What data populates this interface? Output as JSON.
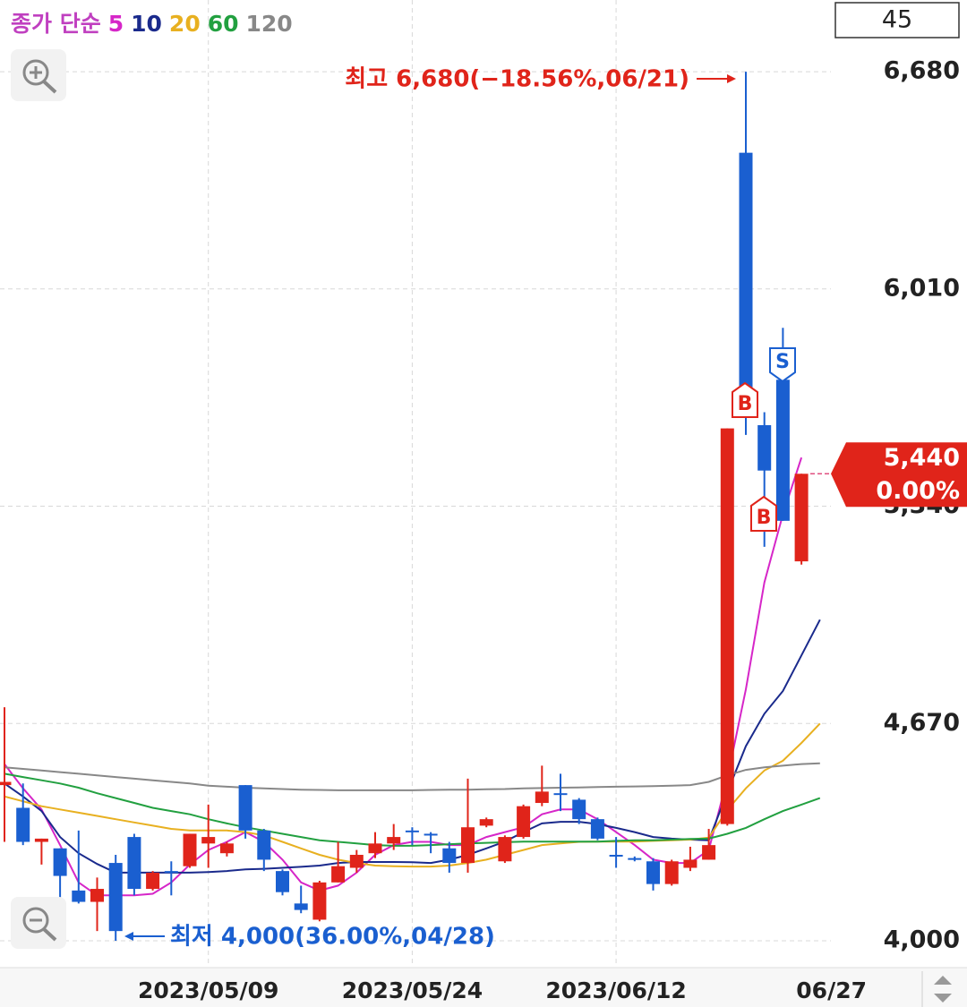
{
  "chart_data": {
    "type": "candlestick",
    "ma_label": "종가 단순",
    "period_box": "45",
    "categories": [
      null,
      null,
      null,
      null,
      null,
      null,
      null,
      null,
      null,
      null,
      null,
      "2023/05/09",
      null,
      null,
      null,
      null,
      null,
      null,
      null,
      null,
      null,
      null,
      "2023/05/24",
      null,
      null,
      null,
      null,
      null,
      null,
      null,
      null,
      null,
      null,
      "2023/06/12",
      null,
      null,
      null,
      null,
      null,
      null,
      null,
      null,
      null,
      null,
      "06/27"
    ],
    "open": [
      4480,
      4410,
      4305,
      4285,
      4155,
      4120,
      4240,
      4320,
      4160,
      4215,
      4230,
      4300,
      4270,
      4480,
      4340,
      4215,
      4115,
      4065,
      4180,
      4225,
      4270,
      4300,
      4340,
      4330,
      4285,
      4240,
      4355,
      4245,
      4320,
      4425,
      4455,
      4435,
      4375,
      4265,
      4255,
      4245,
      4175,
      4225,
      4250,
      4360,
      6430,
      5590,
      5730,
      5170,
      null
    ],
    "high": [
      4720,
      4485,
      4315,
      4285,
      4340,
      4195,
      4265,
      4330,
      4215,
      4245,
      4330,
      4420,
      4305,
      4480,
      4345,
      4220,
      4170,
      4185,
      4305,
      4280,
      4335,
      4360,
      4350,
      4335,
      4305,
      4500,
      4380,
      4325,
      4420,
      4540,
      4515,
      4440,
      4380,
      4320,
      4260,
      4255,
      4250,
      4290,
      4345,
      5580,
      6680,
      5630,
      5890,
      5440,
      null
    ],
    "low": [
      4305,
      4295,
      4235,
      4105,
      4115,
      4030,
      4000,
      4140,
      4155,
      4140,
      4225,
      4225,
      4260,
      4315,
      4215,
      4140,
      4085,
      4060,
      4180,
      4210,
      4255,
      4280,
      4295,
      4270,
      4210,
      4210,
      4350,
      4240,
      4315,
      4415,
      4400,
      4360,
      4310,
      4225,
      4245,
      4155,
      4170,
      4215,
      4250,
      4355,
      5560,
      5215,
      5295,
      5160,
      null
    ],
    "close": [
      4490,
      4305,
      4315,
      4200,
      4120,
      4160,
      4030,
      4160,
      4210,
      4210,
      4330,
      4320,
      4300,
      4340,
      4250,
      4150,
      4095,
      4180,
      4230,
      4265,
      4300,
      4320,
      4335,
      4325,
      4240,
      4350,
      4375,
      4320,
      4415,
      4460,
      4450,
      4375,
      4315,
      4260,
      4250,
      4175,
      4245,
      4250,
      4295,
      5580,
      5630,
      5450,
      5295,
      5440,
      null
    ],
    "up_color": "#e0241a",
    "down_color": "#1a5fd0",
    "series": [
      {
        "name": "5",
        "color": "#d626c8",
        "values": [
          4545,
          4470,
          4405,
          4295,
          4180,
          4140,
          4140,
          4140,
          4145,
          4180,
          4235,
          4280,
          4305,
          4335,
          4305,
          4250,
          4180,
          4155,
          4170,
          4210,
          4265,
          4295,
          4305,
          4305,
          4295,
          4295,
          4320,
          4335,
          4350,
          4390,
          4405,
          4405,
          4375,
          4335,
          4295,
          4250,
          4240,
          4240,
          4280,
          4500,
          4775,
          5105,
          5315,
          5490,
          null
        ]
      },
      {
        "name": "10",
        "color": "#1a2a8c",
        "values": [
          4485,
          4445,
          4400,
          4320,
          4270,
          4237,
          4210,
          4210,
          4210,
          4210,
          4210,
          4212,
          4215,
          4220,
          4222,
          4225,
          4228,
          4232,
          4240,
          4243,
          4243,
          4243,
          4242,
          4240,
          4250,
          4265,
          4285,
          4306,
          4335,
          4362,
          4367,
          4367,
          4360,
          4348,
          4335,
          4320,
          4315,
          4312,
          4310,
          4458,
          4600,
          4700,
          4770,
          4880,
          4990
        ]
      },
      {
        "name": "20",
        "color": "#e8b020",
        "values": [
          4445,
          4430,
          4415,
          4405,
          4395,
          4385,
          4375,
          4365,
          4355,
          4345,
          4340,
          4340,
          4340,
          4335,
          4325,
          4305,
          4285,
          4265,
          4250,
          4240,
          4232,
          4230,
          4229,
          4229,
          4232,
          4240,
          4250,
          4265,
          4280,
          4295,
          4300,
          4305,
          4306,
          4306,
          4306,
          4308,
          4310,
          4312,
          4318,
          4403,
          4470,
          4525,
          4555,
          4610,
          4670
        ]
      },
      {
        "name": "60",
        "color": "#22a040",
        "values": [
          4515,
          4505,
          4495,
          4485,
          4472,
          4455,
          4440,
          4425,
          4410,
          4400,
          4390,
          4375,
          4362,
          4350,
          4340,
          4330,
          4320,
          4310,
          4305,
          4300,
          4295,
          4293,
          4293,
          4295,
          4298,
          4300,
          4302,
          4304,
          4306,
          4306,
          4306,
          4306,
          4306,
          4308,
          4310,
          4310,
          4312,
          4314,
          4315,
          4330,
          4348,
          4375,
          4400,
          4420,
          4440
        ]
      },
      {
        "name": "120",
        "color": "#888888",
        "values": [
          4535,
          4530,
          4525,
          4520,
          4515,
          4510,
          4505,
          4500,
          4495,
          4490,
          4485,
          4478,
          4475,
          4472,
          4470,
          4468,
          4466,
          4465,
          4464,
          4464,
          4464,
          4464,
          4464,
          4465,
          4466,
          4466,
          4467,
          4468,
          4470,
          4471,
          4472,
          4473,
          4474,
          4475,
          4476,
          4477,
          4478,
          4480,
          4490,
          4510,
          4527,
          4535,
          4540,
          4545,
          4547
        ]
      }
    ],
    "ylim": [
      3920,
      6901
    ],
    "yticks": [
      {
        "value": 4000,
        "label": "4,000"
      },
      {
        "value": 4670,
        "label": "4,670"
      },
      {
        "value": 5340,
        "label": "5,340"
      },
      {
        "value": 6010,
        "label": "6,010"
      },
      {
        "value": 6680,
        "label": "6,680"
      }
    ],
    "grid": true,
    "last_price": {
      "value": 5440,
      "label": "5,440"
    },
    "last_change": {
      "value": 0,
      "label": "0.00%"
    },
    "annotations": [
      "최고 6,680(−18.56%,06/21)",
      "최저 4,000(36.00%,04/28)"
    ],
    "signals": [
      "B",
      "B",
      "S"
    ]
  }
}
